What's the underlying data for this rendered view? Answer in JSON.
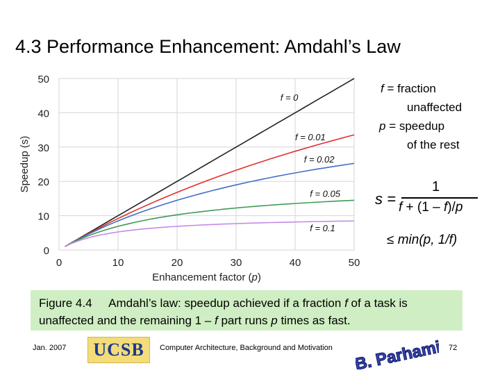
{
  "slide": {
    "title": "4.3 Performance Enhancement: Amdahl’s Law"
  },
  "notes": {
    "f_symbol": "f",
    "f_text": " = fraction",
    "f_text2": "unaffected",
    "p_symbol": "p",
    "p_text": " = speedup",
    "p_text2": "of the rest"
  },
  "formula": {
    "lhs": "s =",
    "numerator": "1",
    "den_f": "f",
    "den_mid": " + (1 – ",
    "den_f2": "f",
    "den_end": ")/",
    "den_p": "p",
    "bound": "≤ min(p, 1/f)"
  },
  "caption": {
    "fig": "Figure 4.4",
    "text1": "Amdahl’s law: speedup achieved if a fraction ",
    "f": "f",
    "text2": " of a task is unaffected and the remaining 1 – ",
    "f2": "f",
    "text3": " part runs ",
    "p": "p",
    "text4": " times as fast."
  },
  "footer": {
    "date": "Jan. 2007",
    "logo_text": "UCSB",
    "course": "Computer Architecture, Background and Motivation",
    "author": "B. Parhami",
    "page": "72"
  },
  "colors": {
    "f0": "#222222",
    "f001": "#e0302a",
    "f002": "#3f6fc4",
    "f005": "#3f9a55",
    "f01": "#c58be6",
    "caption_bg": "#cfeec3"
  },
  "chart_data": {
    "type": "line",
    "xlabel_prefix": "Enhancement factor (",
    "xlabel_var": "p",
    "xlabel_suffix": ")",
    "ylabel": "Speedup (s)",
    "xlim": [
      0,
      50
    ],
    "ylim": [
      0,
      50
    ],
    "xticks": [
      0,
      10,
      20,
      30,
      40,
      50
    ],
    "yticks": [
      0,
      10,
      20,
      30,
      40,
      50
    ],
    "grid": true,
    "series": [
      {
        "name": "f = 0",
        "f": 0,
        "color": "#222222",
        "label_x": 37.5,
        "label_y": 43.5
      },
      {
        "name": "f = 0.01",
        "f": 0.01,
        "color": "#e0302a",
        "label_x": 40,
        "label_y": 32
      },
      {
        "name": "f = 0.02",
        "f": 0.02,
        "color": "#3f6fc4",
        "label_x": 41.5,
        "label_y": 25.5
      },
      {
        "name": "f = 0.05",
        "f": 0.05,
        "color": "#3f9a55",
        "label_x": 42.5,
        "label_y": 15.5
      },
      {
        "name": "f = 0.1",
        "f": 0.1,
        "color": "#c58be6",
        "label_x": 42.5,
        "label_y": 5.5
      }
    ]
  }
}
